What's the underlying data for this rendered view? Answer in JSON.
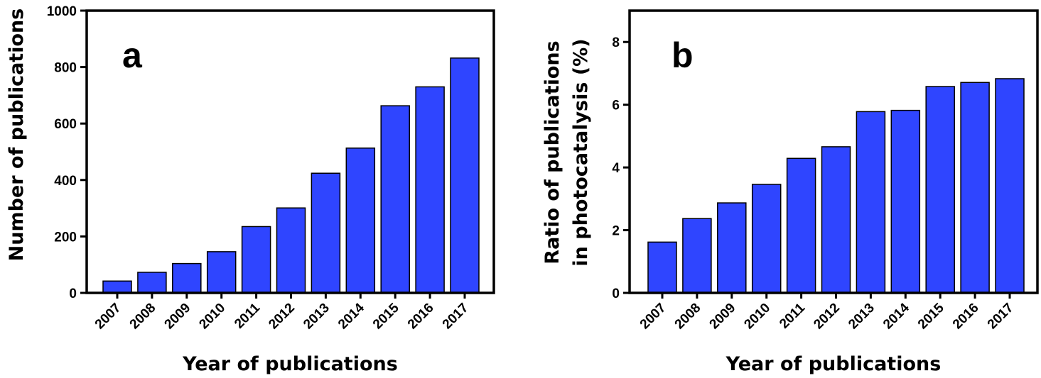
{
  "chart_data": [
    {
      "type": "bar",
      "panel_label": "a",
      "categories": [
        "2007",
        "2008",
        "2009",
        "2010",
        "2011",
        "2012",
        "2013",
        "2014",
        "2015",
        "2016",
        "2017"
      ],
      "values": [
        42,
        73,
        104,
        146,
        235,
        301,
        424,
        513,
        663,
        730,
        832
      ],
      "xlabel": "Year of publications",
      "ylabel": "Number of publications",
      "ylabel_lines": [
        "Number of publications"
      ],
      "ylim": [
        0,
        1000
      ],
      "yticks": [
        0,
        200,
        400,
        600,
        800,
        1000
      ],
      "ytick_labels": [
        "0",
        "200",
        "400",
        "600",
        "800",
        "1000"
      ],
      "bar_color": "#2f45ff",
      "grid": false
    },
    {
      "type": "bar",
      "panel_label": "b",
      "categories": [
        "2007",
        "2008",
        "2009",
        "2010",
        "2011",
        "2012",
        "2013",
        "2014",
        "2015",
        "2016",
        "2017"
      ],
      "values": [
        1.62,
        2.37,
        2.87,
        3.46,
        4.29,
        4.66,
        5.78,
        5.82,
        6.58,
        6.71,
        6.83
      ],
      "xlabel": "Year of publications",
      "ylabel": "Ratio of publications in photocatalysis (%)",
      "ylabel_lines": [
        "Ratio of publications",
        "in photocatalysis (%)"
      ],
      "ylim": [
        0,
        9
      ],
      "yticks": [
        0,
        2,
        4,
        6,
        8
      ],
      "ytick_labels": [
        "0",
        "2",
        "4",
        "6",
        "8"
      ],
      "bar_color": "#2f45ff",
      "grid": false
    }
  ]
}
